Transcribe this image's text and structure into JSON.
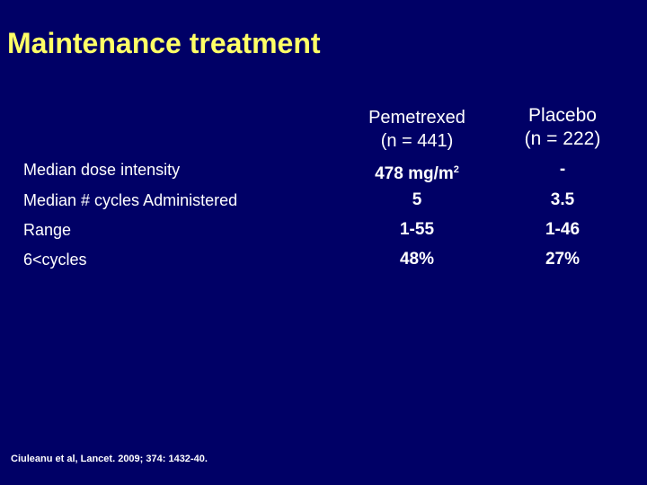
{
  "slide": {
    "title": "Maintenance treatment",
    "colors": {
      "background": "#000066",
      "title": "#FFFF66",
      "text": "#FFFFFF"
    }
  },
  "table": {
    "headers": [
      {
        "line1": "Pemetrexed",
        "line2": "(n = 441)"
      },
      {
        "line1": "Placebo",
        "line2": "(n = 222)"
      }
    ],
    "rows": [
      {
        "label": "Median dose intensity",
        "pemetrexed_value": "478 mg/m",
        "pemetrexed_unit_exp": "2",
        "placebo": "-"
      },
      {
        "label": "Median  # cycles Administered",
        "pemetrexed": "5",
        "placebo": "3.5"
      },
      {
        "label": "Range",
        "pemetrexed": "1-55",
        "placebo": "1-46"
      },
      {
        "label": "6<cycles",
        "pemetrexed": "48%",
        "placebo": "27%"
      }
    ]
  },
  "citation": "Ciuleanu et al, Lancet. 2009; 374: 1432-40."
}
